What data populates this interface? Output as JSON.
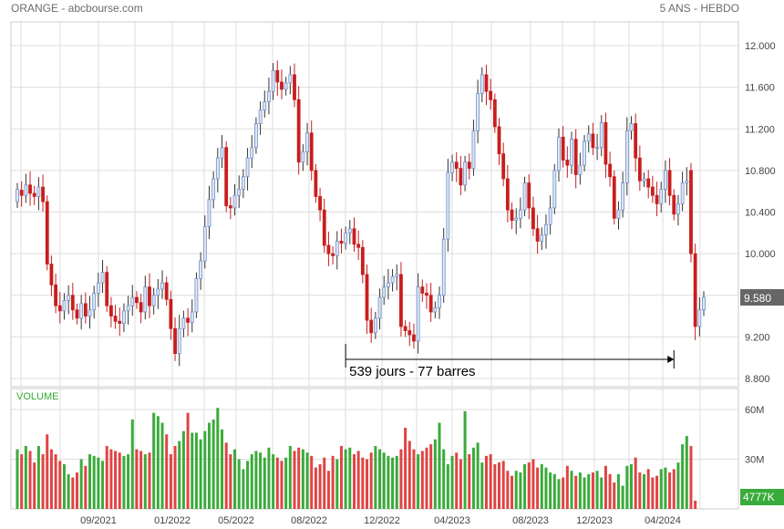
{
  "header": {
    "title": "ORANGE - abcbourse.com",
    "period": "5 ANS - HEBDO"
  },
  "colors": {
    "up": "#6f8fc8",
    "down": "#c81e1e",
    "vol_up": "#3aab3a",
    "vol_down": "#e04444",
    "grid": "#dddddd",
    "last_price_bg": "#666666",
    "last_vol_bg": "#3aab3a"
  },
  "chart_data": [
    {
      "type": "candlestick",
      "name": "price",
      "y_ticks": [
        "8.800",
        "9.200",
        "9.600",
        "10.000",
        "10.400",
        "10.800",
        "11.200",
        "11.600",
        "12.000"
      ],
      "ylim": [
        8.8,
        12.0
      ],
      "x_labels": [
        "09/2021",
        "01/2022",
        "05/2022",
        "08/2022",
        "12/2022",
        "04/2023",
        "08/2023",
        "12/2023",
        "04/2024"
      ],
      "last_price": "9.580",
      "annotation": {
        "text": "539 jours - 77 barres",
        "from_index": 77,
        "to_index": 154
      },
      "closes": [
        10.62,
        10.56,
        10.66,
        10.58,
        10.55,
        10.64,
        10.5,
        9.9,
        9.7,
        9.5,
        9.45,
        9.55,
        9.6,
        9.46,
        9.38,
        9.52,
        9.4,
        9.46,
        9.62,
        9.72,
        9.82,
        9.5,
        9.4,
        9.35,
        9.33,
        9.45,
        9.5,
        9.58,
        9.53,
        9.44,
        9.68,
        9.5,
        9.6,
        9.66,
        9.72,
        9.56,
        9.28,
        9.04,
        9.28,
        9.38,
        9.34,
        9.44,
        9.76,
        9.93,
        10.26,
        10.52,
        10.72,
        10.92,
        11.02,
        10.46,
        10.44,
        10.56,
        10.62,
        10.74,
        10.92,
        11.02,
        11.25,
        11.38,
        11.46,
        11.56,
        11.76,
        11.65,
        11.58,
        11.64,
        11.72,
        11.48,
        10.88,
        10.98,
        11.16,
        10.8,
        10.55,
        10.42,
        10.08,
        10.0,
        9.98,
        10.12,
        10.1,
        10.2,
        10.24,
        10.09,
        10.06,
        9.8,
        9.36,
        9.24,
        9.38,
        9.58,
        9.68,
        9.72,
        9.78,
        9.8,
        9.3,
        9.26,
        9.22,
        9.16,
        9.68,
        9.62,
        9.6,
        9.44,
        9.48,
        9.6,
        10.14,
        10.78,
        10.88,
        10.82,
        10.66,
        10.88,
        10.82,
        11.18,
        11.54,
        11.72,
        11.56,
        11.48,
        11.22,
        10.96,
        10.72,
        10.42,
        10.32,
        10.34,
        10.42,
        10.68,
        10.44,
        10.24,
        10.12,
        10.18,
        10.28,
        10.44,
        10.8,
        11.12,
        10.9,
        10.85,
        11.1,
        10.76,
        10.85,
        11.08,
        11.15,
        11.02,
        11.02,
        11.26,
        10.86,
        10.74,
        10.34,
        10.42,
        10.68,
        11.18,
        11.25,
        10.92,
        10.7,
        10.72,
        10.64,
        10.56,
        10.48,
        10.62,
        10.8,
        10.56,
        10.38,
        10.48,
        10.68,
        10.7,
        10.0,
        9.3,
        9.46,
        9.58
      ],
      "opens": [
        10.5,
        10.61,
        10.56,
        10.66,
        10.58,
        10.55,
        10.64,
        10.5,
        9.9,
        9.7,
        9.5,
        9.45,
        9.55,
        9.6,
        9.46,
        9.38,
        9.52,
        9.4,
        9.46,
        9.62,
        9.72,
        9.82,
        9.5,
        9.4,
        9.35,
        9.33,
        9.45,
        9.5,
        9.58,
        9.53,
        9.44,
        9.68,
        9.5,
        9.6,
        9.66,
        9.72,
        9.56,
        9.28,
        9.04,
        9.28,
        9.38,
        9.34,
        9.44,
        9.76,
        9.93,
        10.26,
        10.52,
        10.72,
        10.92,
        11.02,
        10.46,
        10.44,
        10.56,
        10.62,
        10.74,
        10.92,
        11.02,
        11.25,
        11.38,
        11.46,
        11.56,
        11.76,
        11.65,
        11.58,
        11.64,
        11.72,
        11.48,
        10.88,
        10.98,
        11.16,
        10.8,
        10.55,
        10.42,
        10.08,
        10.0,
        9.98,
        10.12,
        10.1,
        10.2,
        10.24,
        10.09,
        10.06,
        9.8,
        9.36,
        9.24,
        9.38,
        9.58,
        9.68,
        9.72,
        9.78,
        9.8,
        9.3,
        9.26,
        9.22,
        9.16,
        9.68,
        9.62,
        9.6,
        9.44,
        9.48,
        9.6,
        10.14,
        10.78,
        10.88,
        10.82,
        10.66,
        10.88,
        10.82,
        11.18,
        11.54,
        11.72,
        11.56,
        11.48,
        11.22,
        10.96,
        10.72,
        10.42,
        10.32,
        10.34,
        10.42,
        10.68,
        10.44,
        10.24,
        10.12,
        10.18,
        10.28,
        10.44,
        10.8,
        11.12,
        10.9,
        10.85,
        11.1,
        10.76,
        10.85,
        11.08,
        11.15,
        11.02,
        11.02,
        11.26,
        10.86,
        10.74,
        10.34,
        10.42,
        10.68,
        11.18,
        11.25,
        10.92,
        10.7,
        10.72,
        10.64,
        10.56,
        10.48,
        10.62,
        10.8,
        10.56,
        10.38,
        10.48,
        10.68,
        10.8,
        10.0,
        9.3,
        9.46
      ]
    },
    {
      "type": "bar",
      "name": "volume",
      "title": "VOLUME",
      "y_ticks": [
        "30M",
        "60M"
      ],
      "ylim": [
        0,
        60
      ],
      "unit": "M",
      "last_volume": "4777K",
      "values": [
        36,
        33,
        38,
        35,
        28,
        38,
        33,
        45,
        36,
        33,
        29,
        27,
        21,
        19,
        22,
        30,
        26,
        33,
        32,
        31,
        29,
        38,
        36,
        35,
        34,
        32,
        33,
        54,
        36,
        35,
        33,
        34,
        58,
        56,
        52,
        45,
        33,
        38,
        41,
        47,
        58,
        46,
        46,
        42,
        47,
        52,
        54,
        61,
        48,
        40,
        33,
        36,
        30,
        24,
        29,
        33,
        35,
        34,
        31,
        37,
        33,
        31,
        29,
        31,
        38,
        35,
        37,
        36,
        34,
        32,
        25,
        27,
        31,
        23,
        32,
        30,
        38,
        36,
        37,
        33,
        35,
        31,
        30,
        34,
        38,
        36,
        34,
        32,
        31,
        32,
        36,
        49,
        41,
        36,
        33,
        35,
        37,
        39,
        42,
        52,
        36,
        27,
        32,
        34,
        30,
        59,
        33,
        37,
        40,
        28,
        32,
        33,
        27,
        28,
        29,
        23,
        20,
        23,
        22,
        27,
        28,
        30,
        25,
        27,
        25,
        22,
        21,
        18,
        19,
        26,
        23,
        20,
        22,
        19,
        21,
        22,
        23,
        19,
        26,
        21,
        16,
        21,
        14,
        26,
        27,
        31,
        22,
        21,
        24,
        19,
        20,
        24,
        25,
        22,
        24,
        28,
        39,
        44,
        38,
        5
      ]
    }
  ]
}
